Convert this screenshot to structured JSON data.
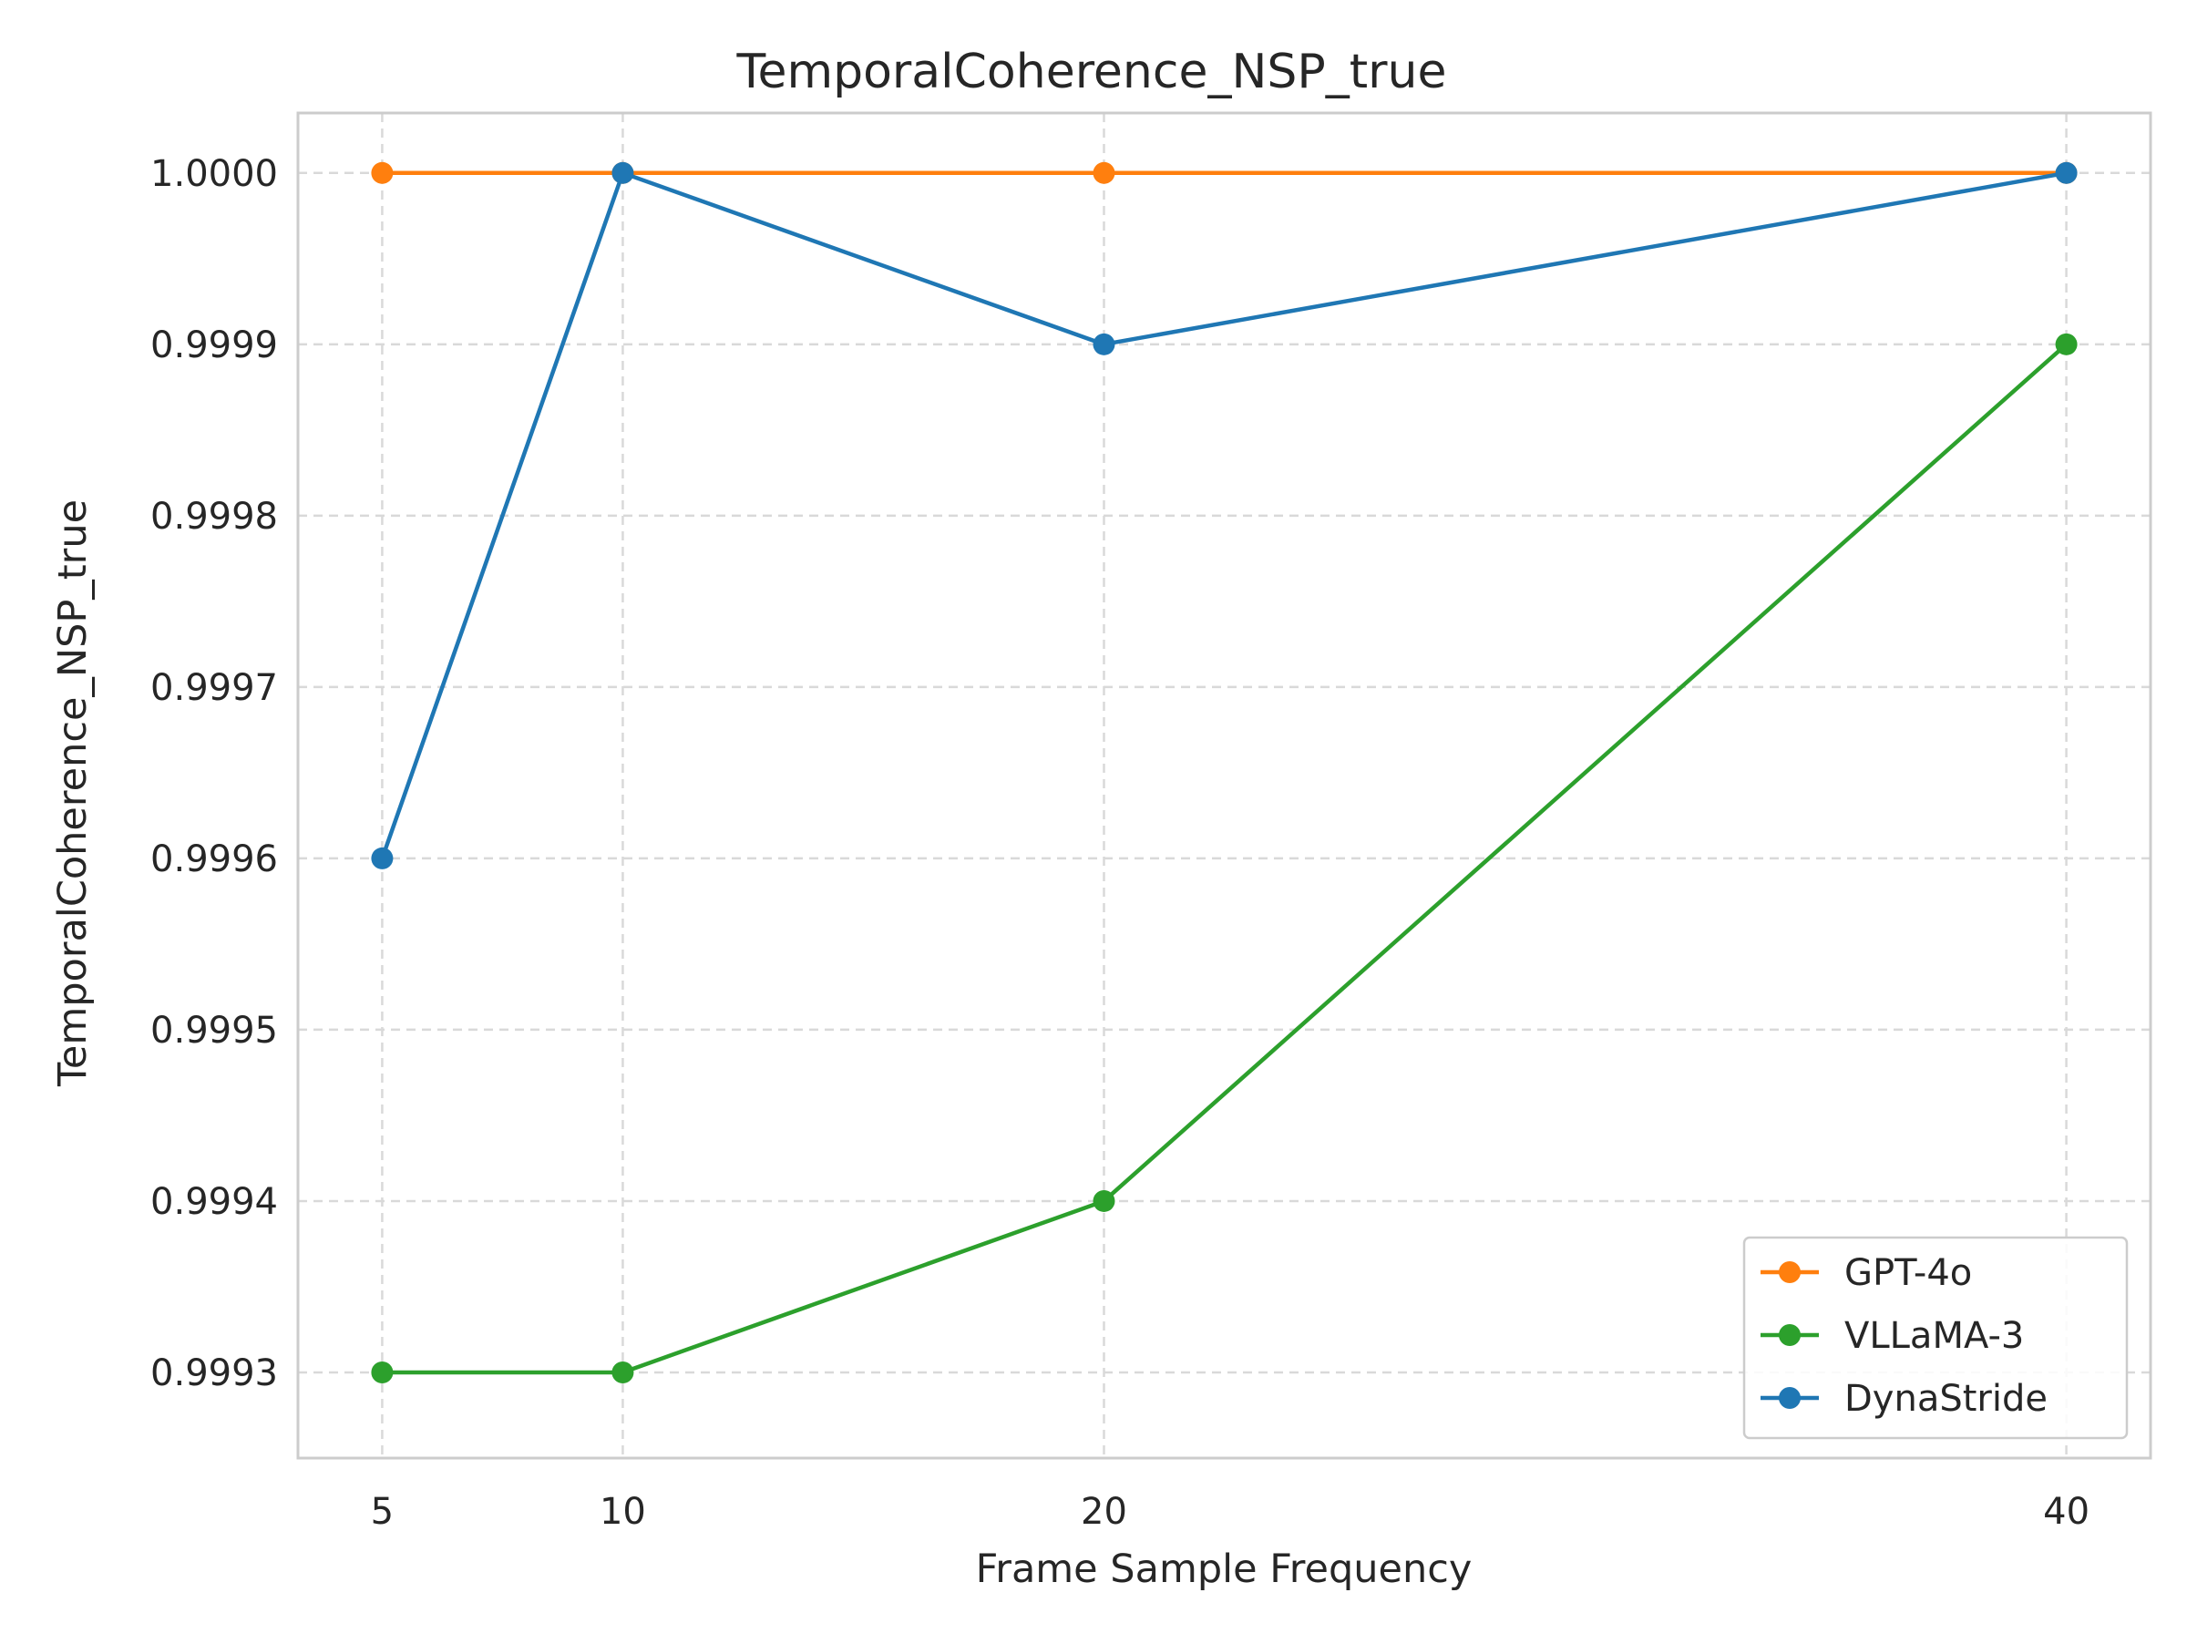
{
  "chart_data": {
    "type": "line",
    "title": "TemporalCoherence_NSP_true",
    "xlabel": "Frame Sample Frequency",
    "ylabel": "TemporalCoherence_NSP_true",
    "x": [
      5,
      10,
      20,
      40
    ],
    "x_ticks": [
      "5",
      "10",
      "20",
      "40"
    ],
    "y_ticks": [
      "0.9993",
      "0.9994",
      "0.9995",
      "0.9996",
      "0.9997",
      "0.9998",
      "0.9999",
      "1.0000"
    ],
    "xlim": [
      3.25,
      41.75
    ],
    "ylim": [
      0.99925,
      1.000035
    ],
    "grid": true,
    "grid_style": "dashed",
    "legend_position": "bottom-right",
    "series": [
      {
        "name": "GPT-4o",
        "color": "#ff7f0e",
        "values": [
          1.0,
          1.0,
          1.0,
          1.0
        ]
      },
      {
        "name": "VLLaMA-3",
        "color": "#2ca02c",
        "values": [
          0.9993,
          0.9993,
          0.9994,
          0.9999
        ]
      },
      {
        "name": "DynaStride",
        "color": "#1f77b4",
        "values": [
          0.9996,
          1.0,
          0.9999,
          1.0
        ]
      }
    ]
  }
}
